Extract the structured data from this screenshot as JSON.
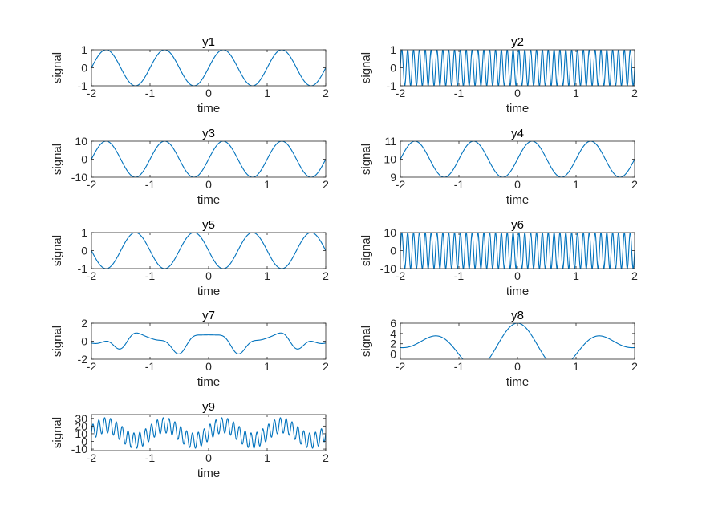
{
  "colors": {
    "line": "#0072BD",
    "axis": "#262626",
    "background": "#ffffff"
  },
  "chart_data": [
    {
      "type": "line",
      "title": "y1",
      "xlabel": "time",
      "ylabel": "signal",
      "xlim": [
        -2,
        2
      ],
      "ylim": [
        -1,
        1
      ],
      "xticks": [
        -2,
        -1,
        0,
        1,
        2
      ],
      "yticks": [
        -1,
        0,
        1
      ],
      "grid": false,
      "series": [
        {
          "function": "sin(2*pi*t)",
          "x_range": [
            -2,
            2
          ]
        }
      ]
    },
    {
      "type": "line",
      "title": "y2",
      "xlabel": "time",
      "ylabel": "signal",
      "xlim": [
        -2,
        2
      ],
      "ylim": [
        -1,
        1
      ],
      "xticks": [
        -2,
        -1,
        0,
        1,
        2
      ],
      "yticks": [
        -1,
        0,
        1
      ],
      "grid": false,
      "series": [
        {
          "function": "sin(20*pi*t)",
          "x_range": [
            -2,
            2
          ]
        }
      ]
    },
    {
      "type": "line",
      "title": "y3",
      "xlabel": "time",
      "ylabel": "signal",
      "xlim": [
        -2,
        2
      ],
      "ylim": [
        -10,
        10
      ],
      "xticks": [
        -2,
        -1,
        0,
        1,
        2
      ],
      "yticks": [
        -10,
        0,
        10
      ],
      "grid": false,
      "series": [
        {
          "function": "10*sin(2*pi*t)",
          "x_range": [
            -2,
            2
          ]
        }
      ]
    },
    {
      "type": "line",
      "title": "y4",
      "xlabel": "time",
      "ylabel": "signal",
      "xlim": [
        -2,
        2
      ],
      "ylim": [
        9,
        11
      ],
      "xticks": [
        -2,
        -1,
        0,
        1,
        2
      ],
      "yticks": [
        9,
        10,
        11
      ],
      "grid": false,
      "series": [
        {
          "function": "10+sin(2*pi*t)",
          "x_range": [
            -2,
            2
          ]
        }
      ]
    },
    {
      "type": "line",
      "title": "y5",
      "xlabel": "time",
      "ylabel": "signal",
      "xlim": [
        -2,
        2
      ],
      "ylim": [
        -1,
        1
      ],
      "xticks": [
        -2,
        -1,
        0,
        1,
        2
      ],
      "yticks": [
        -1,
        0,
        1
      ],
      "grid": false,
      "series": [
        {
          "function": "sin(2*pi*(t-0.5))",
          "x_range": [
            -2,
            2
          ]
        }
      ]
    },
    {
      "type": "line",
      "title": "y6",
      "xlabel": "time",
      "ylabel": "signal",
      "xlim": [
        -2,
        2
      ],
      "ylim": [
        -10,
        10
      ],
      "xticks": [
        -2,
        -1,
        0,
        1,
        2
      ],
      "yticks": [
        -10,
        0,
        10
      ],
      "grid": false,
      "series": [
        {
          "function": "10*sin(20*pi*t)",
          "x_range": [
            -2,
            2
          ]
        }
      ]
    },
    {
      "type": "line",
      "title": "y7",
      "xlabel": "time",
      "ylabel": "signal",
      "xlim": [
        -2,
        2
      ],
      "ylim": [
        -2,
        2
      ],
      "xticks": [
        -2,
        -1,
        0,
        1,
        2
      ],
      "yticks": [
        -2,
        0,
        2
      ],
      "grid": false,
      "series": [
        {
          "function": "0.5*cos(2*pi*t)-0.4*cos(4*pi*t)+0.1*cos(6*pi*t)+0.5*cos(1.6*pi*t)",
          "x_range": [
            -2,
            2
          ]
        }
      ]
    },
    {
      "type": "line",
      "title": "y8",
      "xlabel": "time",
      "ylabel": "signal",
      "xlim": [
        -2,
        2
      ],
      "ylim": [
        -1,
        6
      ],
      "xticks": [
        -2,
        -1,
        0,
        1,
        2
      ],
      "yticks": [
        0,
        2,
        4,
        6
      ],
      "grid": false,
      "series": [
        {
          "function": "1.3+2.2*cos(1.63*pi*t)+2.5*cos(1.15*pi*t)",
          "x_range": [
            -2,
            2
          ]
        }
      ]
    },
    {
      "type": "line",
      "title": "y9",
      "xlabel": "time",
      "ylabel": "signal",
      "xlim": [
        -2,
        2
      ],
      "ylim": [
        -12,
        35
      ],
      "xticks": [
        -2,
        -1,
        0,
        1,
        2
      ],
      "yticks": [
        -10,
        0,
        10,
        20,
        30
      ],
      "grid": false,
      "series": [
        {
          "function": "11+10*sin(2*pi*t)+10*sin(20*pi*t)",
          "x_range": [
            -2,
            2
          ]
        }
      ]
    }
  ]
}
